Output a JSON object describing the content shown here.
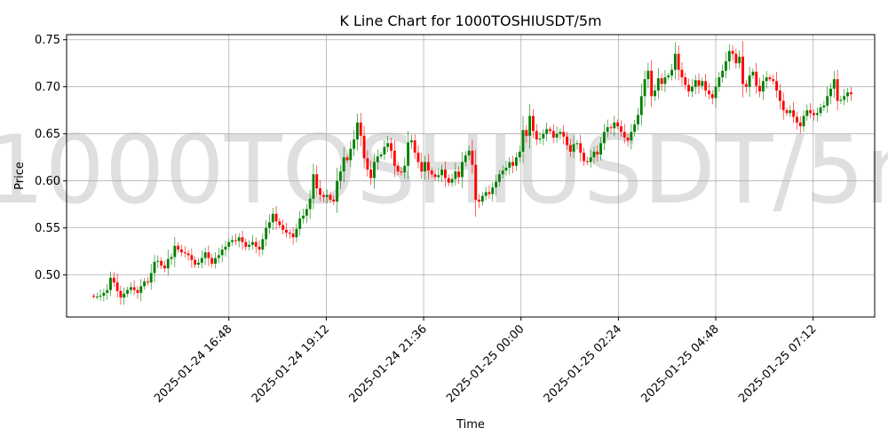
{
  "chart_data": {
    "type": "candlestick",
    "title": "K Line Chart for 1000TOSHIUSDT/5m",
    "watermark": "1000TOSHIUSDT/5m",
    "xlabel": "Time",
    "ylabel": "Price",
    "grid": true,
    "colors": {
      "up": "#008000",
      "down": "#ff0000",
      "grid": "#b0b0b0"
    },
    "ylim": [
      0.4553,
      0.7554
    ],
    "yticks": [
      0.5,
      0.55,
      0.6,
      0.65,
      0.7,
      0.75
    ],
    "ytick_labels": [
      "0.50",
      "0.55",
      "0.60",
      "0.65",
      "0.70",
      "0.75"
    ],
    "x_range_minutes": [
      -40,
      1155
    ],
    "xticks": [
      {
        "t": 200,
        "label": "2025-01-24 16:48"
      },
      {
        "t": 344,
        "label": "2025-01-24 19:12"
      },
      {
        "t": 488,
        "label": "2025-01-24 21:36"
      },
      {
        "t": 632,
        "label": "2025-01-25 00:00"
      },
      {
        "t": 776,
        "label": "2025-01-25 02:24"
      },
      {
        "t": 920,
        "label": "2025-01-25 04:48"
      },
      {
        "t": 1064,
        "label": "2025-01-25 07:12"
      }
    ],
    "interval_minutes": 5,
    "start_time": "2025-01-24 13:35",
    "close_values": [
      0.477,
      0.477,
      0.478,
      0.481,
      0.484,
      0.497,
      0.492,
      0.483,
      0.476,
      0.48,
      0.484,
      0.487,
      0.484,
      0.481,
      0.488,
      0.493,
      0.492,
      0.502,
      0.514,
      0.515,
      0.51,
      0.507,
      0.517,
      0.519,
      0.531,
      0.527,
      0.524,
      0.523,
      0.521,
      0.516,
      0.511,
      0.513,
      0.518,
      0.524,
      0.518,
      0.512,
      0.518,
      0.521,
      0.527,
      0.53,
      0.535,
      0.537,
      0.536,
      0.54,
      0.535,
      0.53,
      0.532,
      0.535,
      0.53,
      0.527,
      0.538,
      0.55,
      0.556,
      0.565,
      0.557,
      0.553,
      0.548,
      0.545,
      0.544,
      0.54,
      0.549,
      0.56,
      0.563,
      0.57,
      0.581,
      0.607,
      0.592,
      0.585,
      0.583,
      0.585,
      0.58,
      0.578,
      0.6,
      0.61,
      0.625,
      0.622,
      0.634,
      0.644,
      0.662,
      0.648,
      0.624,
      0.612,
      0.603,
      0.62,
      0.626,
      0.628,
      0.636,
      0.64,
      0.632,
      0.616,
      0.61,
      0.609,
      0.616,
      0.641,
      0.643,
      0.63,
      0.62,
      0.61,
      0.62,
      0.611,
      0.607,
      0.604,
      0.606,
      0.612,
      0.603,
      0.598,
      0.602,
      0.61,
      0.604,
      0.62,
      0.627,
      0.632,
      0.617,
      0.58,
      0.578,
      0.584,
      0.588,
      0.586,
      0.593,
      0.599,
      0.607,
      0.611,
      0.614,
      0.62,
      0.616,
      0.625,
      0.631,
      0.654,
      0.648,
      0.669,
      0.653,
      0.644,
      0.645,
      0.65,
      0.655,
      0.653,
      0.646,
      0.65,
      0.652,
      0.647,
      0.638,
      0.631,
      0.639,
      0.64,
      0.63,
      0.621,
      0.62,
      0.625,
      0.631,
      0.628,
      0.64,
      0.652,
      0.657,
      0.656,
      0.662,
      0.658,
      0.652,
      0.646,
      0.643,
      0.652,
      0.66,
      0.67,
      0.69,
      0.708,
      0.717,
      0.69,
      0.696,
      0.709,
      0.703,
      0.71,
      0.712,
      0.718,
      0.735,
      0.718,
      0.71,
      0.702,
      0.695,
      0.7,
      0.707,
      0.701,
      0.706,
      0.696,
      0.692,
      0.688,
      0.7,
      0.71,
      0.717,
      0.727,
      0.738,
      0.735,
      0.725,
      0.732,
      0.703,
      0.7,
      0.712,
      0.716,
      0.701,
      0.695,
      0.706,
      0.71,
      0.708,
      0.706,
      0.696,
      0.685,
      0.675,
      0.672,
      0.675,
      0.668,
      0.662,
      0.658,
      0.669,
      0.675,
      0.672,
      0.67,
      0.672,
      0.678,
      0.68,
      0.69,
      0.698,
      0.708,
      0.685,
      0.686,
      0.69,
      0.694,
      0.692
    ]
  }
}
